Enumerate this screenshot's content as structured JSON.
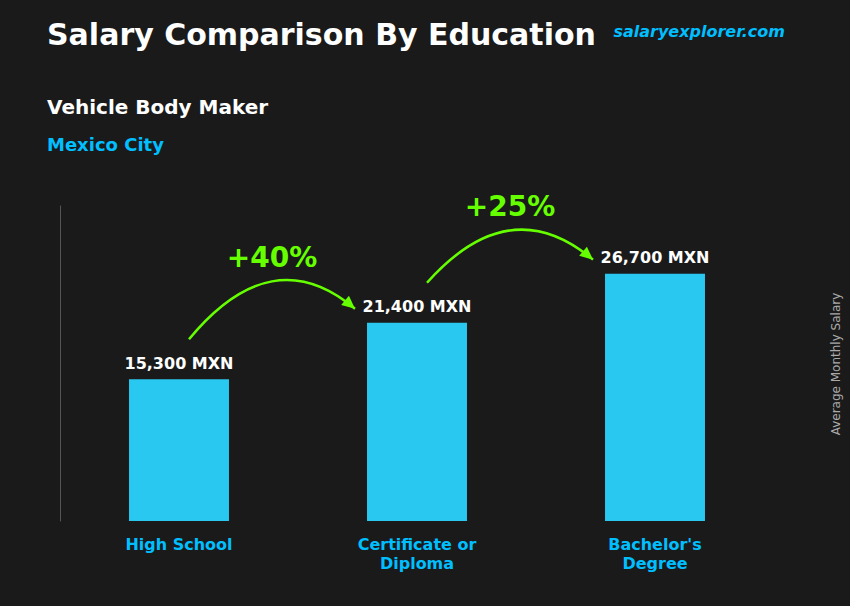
{
  "chart_data": {
    "type": "bar",
    "title": "Salary Comparison By Education",
    "subtitle": [
      "Vehicle Body Maker",
      "Mexico City"
    ],
    "ylabel": "Average Monthly Salary",
    "categories": [
      "High School",
      "Certificate or\nDiploma",
      "Bachelor's\nDegree"
    ],
    "values": [
      15300,
      21400,
      26700
    ],
    "value_labels": [
      "15,300 MXN",
      "21,400 MXN",
      "26,700 MXN"
    ],
    "data_labels": true,
    "color": "#29c8f0",
    "ylim": [
      0,
      34000
    ],
    "grid": false,
    "tick_labels": "x",
    "annotations": [
      {
        "text": "salaryexplorer.com",
        "color": "#00bfff"
      },
      {
        "text": "+40%",
        "color": "#66ff00",
        "arrow": true
      },
      {
        "text": "+25%",
        "color": "#66ff00",
        "arrow": true
      }
    ]
  }
}
